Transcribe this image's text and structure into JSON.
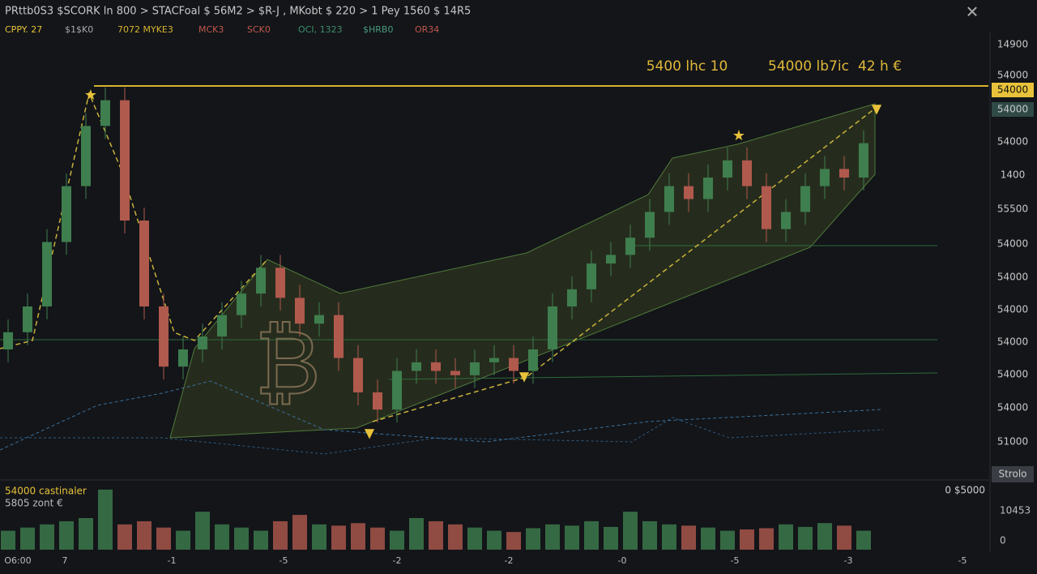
{
  "header": {
    "breadcrumb": "PRttb0S3  $SCORK ln 800 > STACFoal $ 56M2 > $R-J , MKobt $ 220 > 1 Pey 1560 $ 14R5"
  },
  "toolbar": [
    "CPPY. 27",
    "$1$K0",
    "7072 MYKE3",
    "MCK3",
    "SCK0",
    "OCI, 1323",
    "$HRB0",
    "OR34"
  ],
  "price_axis_labels": [
    "14900",
    "54000",
    "54000",
    "54000",
    "54000",
    "1400",
    "55500",
    "54000",
    "54000",
    "54000",
    "54000",
    "54000",
    "54000",
    "51000",
    "Strolo"
  ],
  "annotations": [
    "5400 lhc  10",
    "54000 lb7ic",
    "42 h €"
  ],
  "volume_panel": {
    "legend": [
      "54000 castinaler",
      "5805 zont €"
    ],
    "right_label": "0 $5000",
    "axis_labels": [
      "10453",
      "0"
    ]
  },
  "x_axis_labels": [
    "O6:00",
    "7",
    "-1",
    "-5",
    "-2",
    "-2",
    "-0",
    "-5",
    "-3",
    "-5"
  ],
  "chart_data": {
    "type": "candlestick",
    "ylim": [
      0,
      100
    ],
    "open": [
      30,
      34,
      40,
      55,
      68,
      82,
      88,
      60,
      40,
      26,
      30,
      33,
      38,
      43,
      49,
      42,
      36,
      38,
      28,
      20,
      16,
      25,
      27,
      25,
      24,
      27,
      28,
      25,
      30,
      40,
      44,
      50,
      52,
      56,
      62,
      68,
      65,
      70,
      74,
      68,
      58,
      62,
      68,
      72,
      70
    ],
    "high": [
      37,
      43,
      58,
      71,
      85,
      91,
      91,
      63,
      43,
      33,
      36,
      41,
      46,
      52,
      52,
      45,
      41,
      41,
      31,
      23,
      28,
      30,
      30,
      28,
      30,
      31,
      31,
      33,
      43,
      47,
      53,
      55,
      59,
      65,
      71,
      71,
      73,
      77,
      77,
      71,
      65,
      71,
      75,
      75,
      81
    ],
    "low": [
      27,
      31,
      37,
      52,
      65,
      79,
      57,
      37,
      23,
      23,
      27,
      30,
      35,
      40,
      39,
      33,
      33,
      25,
      17,
      13,
      13,
      22,
      22,
      21,
      21,
      24,
      22,
      22,
      27,
      37,
      41,
      47,
      49,
      53,
      59,
      62,
      62,
      67,
      65,
      55,
      55,
      59,
      65,
      67,
      67
    ],
    "close": [
      34,
      40,
      55,
      68,
      82,
      88,
      60,
      40,
      26,
      30,
      33,
      38,
      43,
      49,
      42,
      36,
      38,
      28,
      20,
      16,
      25,
      27,
      25,
      24,
      27,
      28,
      25,
      30,
      40,
      44,
      50,
      52,
      56,
      62,
      68,
      65,
      70,
      74,
      68,
      58,
      62,
      68,
      72,
      70,
      78
    ],
    "vlim": [
      0,
      100
    ],
    "volume": [
      30,
      35,
      40,
      45,
      50,
      95,
      40,
      45,
      35,
      30,
      60,
      40,
      35,
      30,
      45,
      55,
      40,
      38,
      42,
      35,
      30,
      50,
      45,
      40,
      35,
      30,
      28,
      34,
      40,
      38,
      45,
      36,
      60,
      45,
      40,
      38,
      35,
      30,
      32,
      34,
      40,
      36,
      42,
      38,
      30
    ],
    "up_color": "#3f7e4e",
    "down_color": "#b0594d"
  }
}
